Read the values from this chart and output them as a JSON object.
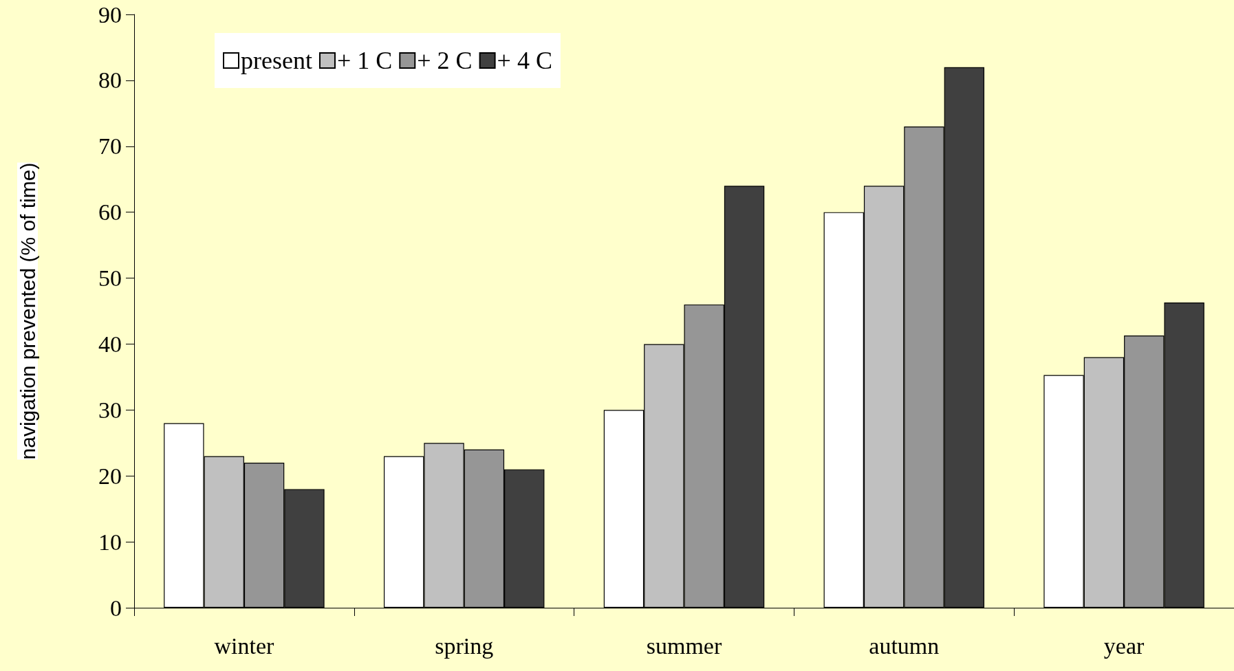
{
  "chart_data": {
    "type": "bar",
    "ylabel": "navigation prevented (% of time)",
    "categories": [
      "winter",
      "spring",
      "summer",
      "autumn",
      "year"
    ],
    "series": [
      {
        "name": "present",
        "color": "#ffffff",
        "values": [
          28,
          23,
          30,
          60,
          35.3
        ]
      },
      {
        "name": "+ 1 C",
        "color": "#c0c0c0",
        "values": [
          23,
          25,
          40,
          64,
          38
        ]
      },
      {
        "name": "+ 2 C",
        "color": "#969696",
        "values": [
          22,
          24,
          46,
          73,
          41.3
        ]
      },
      {
        "name": "+ 4 C",
        "color": "#404040",
        "values": [
          18,
          21,
          64,
          82,
          46.3
        ]
      }
    ],
    "ylim": [
      0,
      90
    ],
    "yticks": [
      0,
      10,
      20,
      30,
      40,
      50,
      60,
      70,
      80,
      90
    ],
    "grid": false,
    "legend": "top left"
  }
}
